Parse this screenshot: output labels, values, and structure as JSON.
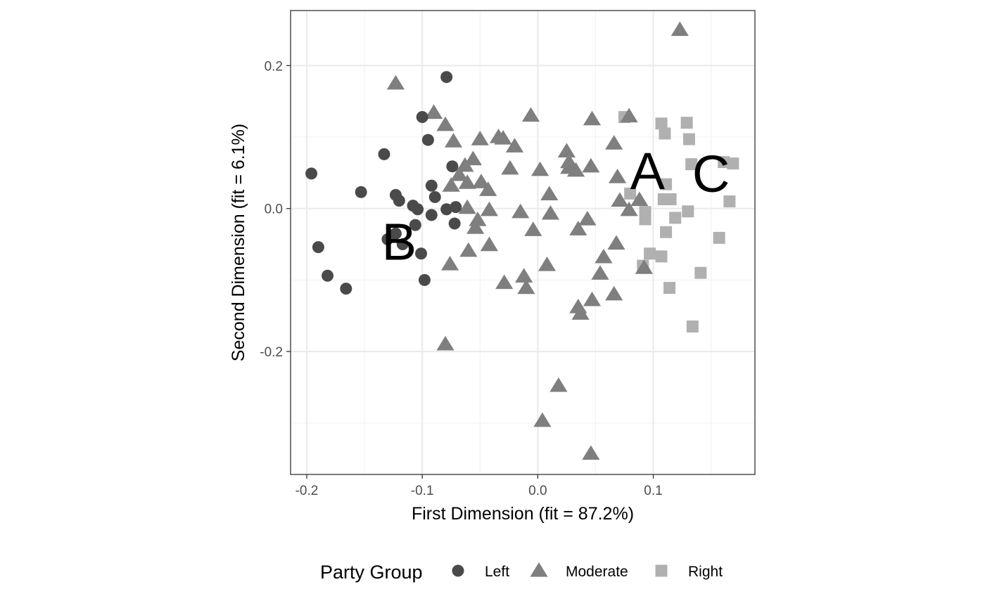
{
  "chart_data": {
    "type": "scatter",
    "title": "",
    "xlabel": "First Dimension (fit = 87.2%)",
    "ylabel": "Second Dimension (fit = 6.1%)",
    "xlim": [
      -0.214,
      0.188
    ],
    "ylim": [
      -0.372,
      0.277
    ],
    "x_ticks": [
      -0.2,
      -0.1,
      0.0,
      0.1
    ],
    "x_tick_labels": [
      "-0.2",
      "-0.1",
      "0.0",
      "0.1"
    ],
    "y_ticks": [
      -0.2,
      0.0,
      0.2
    ],
    "y_tick_labels": [
      "-0.2",
      "0.0",
      "0.2"
    ],
    "grid": true,
    "legend": {
      "title": "Party Group",
      "position": "bottom",
      "entries": [
        {
          "label": "Left",
          "shape": "circle",
          "color": "#4a4a4a"
        },
        {
          "label": "Moderate",
          "shape": "triangle",
          "color": "#7f7f7f"
        },
        {
          "label": "Right",
          "shape": "square",
          "color": "#b0b0b0"
        }
      ]
    },
    "annotations": [
      {
        "text": "A",
        "x": 0.095,
        "y": 0.053
      },
      {
        "text": "B",
        "x": -0.12,
        "y": -0.046
      },
      {
        "text": "C",
        "x": 0.15,
        "y": 0.049
      }
    ],
    "series": [
      {
        "name": "Left",
        "shape": "circle",
        "color": "#4a4a4a",
        "points": [
          [
            -0.196,
            0.049
          ],
          [
            -0.19,
            -0.054
          ],
          [
            -0.182,
            -0.094
          ],
          [
            -0.166,
            -0.112
          ],
          [
            -0.153,
            0.023
          ],
          [
            -0.133,
            0.076
          ],
          [
            -0.13,
            -0.043
          ],
          [
            -0.123,
            0.019
          ],
          [
            -0.12,
            0.011
          ],
          [
            -0.117,
            -0.05
          ],
          [
            -0.108,
            0.004
          ],
          [
            -0.106,
            -0.023
          ],
          [
            -0.104,
            -0.001
          ],
          [
            -0.101,
            -0.063
          ],
          [
            -0.1,
            0.128
          ],
          [
            -0.098,
            -0.1
          ],
          [
            -0.095,
            0.096
          ],
          [
            -0.092,
            0.032
          ],
          [
            -0.092,
            -0.009
          ],
          [
            -0.089,
            0.016
          ],
          [
            -0.079,
            0.184
          ],
          [
            -0.079,
            -0.001
          ],
          [
            -0.074,
            0.059
          ],
          [
            -0.072,
            -0.021
          ],
          [
            -0.071,
            0.002
          ],
          [
            -0.123,
            -0.035
          ]
        ]
      },
      {
        "name": "Moderate",
        "shape": "triangle",
        "color": "#7f7f7f",
        "points": [
          [
            -0.123,
            0.175
          ],
          [
            -0.09,
            0.134
          ],
          [
            -0.08,
            0.117
          ],
          [
            -0.08,
            -0.19
          ],
          [
            -0.076,
            -0.078
          ],
          [
            -0.073,
            0.094
          ],
          [
            -0.075,
            0.032
          ],
          [
            -0.068,
            0.047
          ],
          [
            -0.063,
            0.06
          ],
          [
            -0.061,
            0.001
          ],
          [
            -0.061,
            0.036
          ],
          [
            -0.06,
            -0.059
          ],
          [
            -0.056,
            0.069
          ],
          [
            -0.054,
            -0.027
          ],
          [
            -0.052,
            -0.016
          ],
          [
            -0.05,
            0.097
          ],
          [
            -0.049,
            0.037
          ],
          [
            -0.043,
            0.026
          ],
          [
            -0.042,
            -0.051
          ],
          [
            -0.042,
            -0.002
          ],
          [
            -0.034,
            0.1
          ],
          [
            -0.03,
            0.098
          ],
          [
            -0.029,
            -0.104
          ],
          [
            -0.024,
            0.056
          ],
          [
            -0.02,
            0.087
          ],
          [
            -0.015,
            -0.005
          ],
          [
            -0.012,
            -0.095
          ],
          [
            -0.01,
            -0.111
          ],
          [
            -0.006,
            0.13
          ],
          [
            -0.004,
            -0.03
          ],
          [
            0.002,
            0.054
          ],
          [
            0.008,
            -0.079
          ],
          [
            0.01,
            0.02
          ],
          [
            0.011,
            -0.007
          ],
          [
            0.018,
            -0.248
          ],
          [
            0.004,
            -0.297
          ],
          [
            0.025,
            0.08
          ],
          [
            0.027,
            0.057
          ],
          [
            0.027,
            0.065
          ],
          [
            0.033,
            0.053
          ],
          [
            0.035,
            -0.029
          ],
          [
            0.035,
            -0.138
          ],
          [
            0.037,
            -0.147
          ],
          [
            0.043,
            -0.015
          ],
          [
            0.046,
            -0.343
          ],
          [
            0.046,
            0.059
          ],
          [
            0.047,
            -0.128
          ],
          [
            0.047,
            0.125
          ],
          [
            0.054,
            -0.091
          ],
          [
            0.057,
            -0.068
          ],
          [
            0.066,
            0.091
          ],
          [
            0.066,
            -0.12
          ],
          [
            0.068,
            -0.049
          ],
          [
            0.069,
            0.044
          ],
          [
            0.071,
            0.011
          ],
          [
            0.079,
            0.129
          ],
          [
            0.079,
            -0.002
          ],
          [
            0.088,
            0.012
          ],
          [
            0.092,
            -0.083
          ],
          [
            0.123,
            0.25
          ]
        ]
      },
      {
        "name": "Right",
        "shape": "square",
        "color": "#b0b0b0",
        "points": [
          [
            0.075,
            0.128
          ],
          [
            0.08,
            0.021
          ],
          [
            0.091,
            -0.08
          ],
          [
            0.093,
            -0.005
          ],
          [
            0.093,
            -0.015
          ],
          [
            0.097,
            -0.063
          ],
          [
            0.107,
            0.119
          ],
          [
            0.107,
            -0.067
          ],
          [
            0.109,
            0.013
          ],
          [
            0.11,
            0.105
          ],
          [
            0.111,
            0.034
          ],
          [
            0.111,
            -0.033
          ],
          [
            0.115,
            0.013
          ],
          [
            0.114,
            -0.111
          ],
          [
            0.119,
            -0.013
          ],
          [
            0.129,
            0.12
          ],
          [
            0.13,
            -0.004
          ],
          [
            0.131,
            0.097
          ],
          [
            0.133,
            0.062
          ],
          [
            0.134,
            -0.165
          ],
          [
            0.141,
            -0.09
          ],
          [
            0.157,
            -0.041
          ],
          [
            0.161,
            0.065
          ],
          [
            0.166,
            0.01
          ],
          [
            0.169,
            0.063
          ]
        ]
      }
    ]
  }
}
